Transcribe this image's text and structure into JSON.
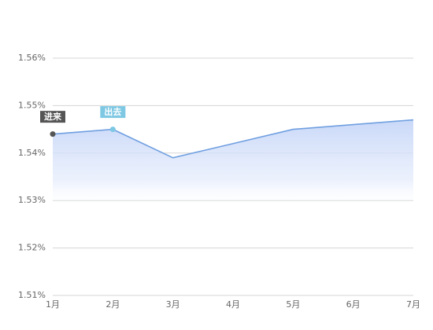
{
  "chart_data": {
    "type": "line",
    "categories": [
      "1月",
      "2月",
      "3月",
      "4月",
      "5月",
      "6月",
      "7月"
    ],
    "series": [
      {
        "color": "#6f9fe0",
        "values": [
          1.544,
          1.545,
          1.539,
          1.542,
          1.545,
          1.546,
          1.547
        ]
      }
    ],
    "ylim": [
      1.51,
      1.56
    ],
    "yticks": [
      {
        "value": 1.51,
        "label": "1.51%"
      },
      {
        "value": 1.52,
        "label": "1.52%"
      },
      {
        "value": 1.53,
        "label": "1.53%"
      },
      {
        "value": 1.54,
        "label": "1.54%"
      },
      {
        "value": 1.55,
        "label": "1.55%"
      },
      {
        "value": 1.56,
        "label": "1.56%"
      }
    ],
    "grid": true,
    "annotations": [
      {
        "text": "进来",
        "x": "1月",
        "color": "#555555"
      },
      {
        "text": "出去",
        "x": "2月",
        "color": "#7ec8e3"
      }
    ]
  }
}
